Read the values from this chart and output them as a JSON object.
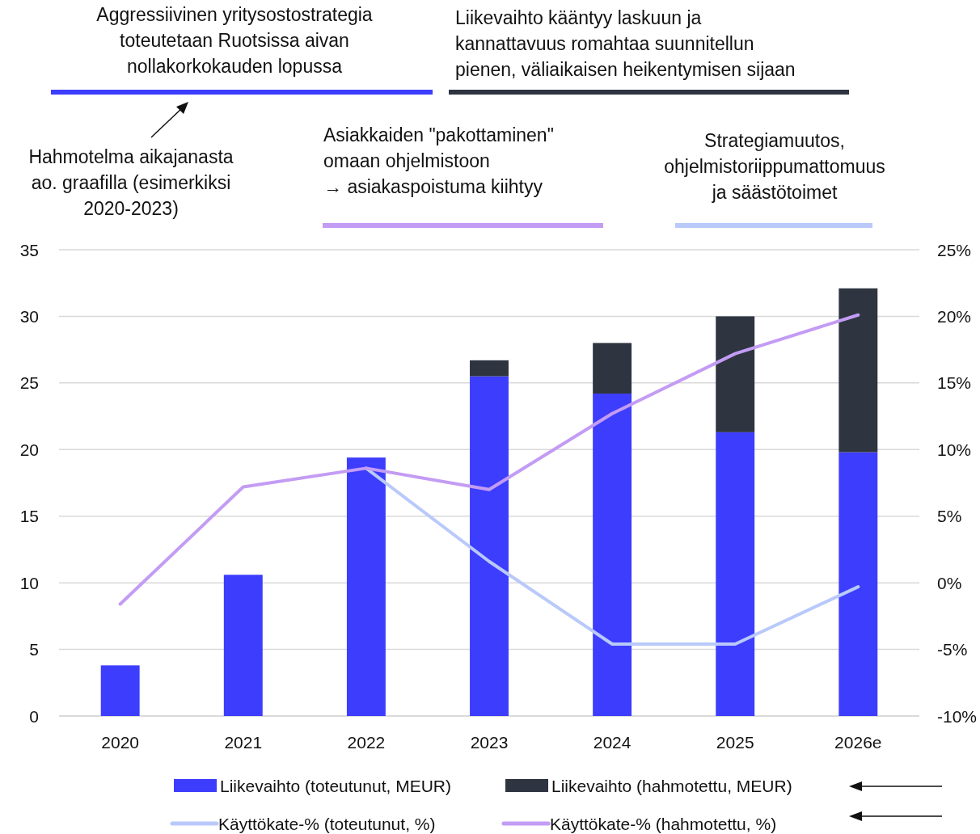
{
  "chart_data": {
    "type": "bar",
    "categories": [
      "2020",
      "2021",
      "2022",
      "2023",
      "2024",
      "2025",
      "2026e"
    ],
    "stacked": true,
    "series": [
      {
        "name": "Liikevaihto (toteutunut, MEUR)",
        "color": "#3d3dfe",
        "values": [
          3.8,
          10.6,
          19.4,
          25.5,
          24.2,
          21.3,
          19.8
        ]
      },
      {
        "name": "Liikevaihto (hahmotettu, MEUR)",
        "color": "#2e3440",
        "values": [
          null,
          null,
          null,
          1.2,
          3.8,
          8.7,
          12.3
        ]
      },
      {
        "name": "Käyttökate-% (toteutunut, %)",
        "type": "line",
        "axis": "y2",
        "color": "#b9c9fa",
        "values": [
          null,
          null,
          8.6,
          1.6,
          -4.6,
          -4.6,
          -0.3
        ]
      },
      {
        "name": "Käyttökate-% (hahmotettu, %)",
        "type": "line",
        "axis": "y2",
        "color": "#c39cf4",
        "values": [
          -1.6,
          7.2,
          8.6,
          7.0,
          12.7,
          17.2,
          20.1
        ]
      }
    ],
    "ylim": [
      0,
      35
    ],
    "yticks": [
      0,
      5,
      10,
      15,
      20,
      25,
      30,
      35
    ],
    "y2lim": [
      -10,
      25
    ],
    "y2ticks": [
      {
        "value": -10,
        "label": "-10%"
      },
      {
        "value": -5,
        "label": "-5%"
      },
      {
        "value": 0,
        "label": "0%"
      },
      {
        "value": 5,
        "label": "5%"
      },
      {
        "value": 10,
        "label": "10%"
      },
      {
        "value": 15,
        "label": "15%"
      },
      {
        "value": 20,
        "label": "20%"
      },
      {
        "value": 25,
        "label": "25%"
      }
    ],
    "grid": "y",
    "legend": "bottom",
    "marker": "none",
    "line_style": "solid",
    "annotations": [
      "Aggressiivinen yritysostostrategia\ntoteutetaan Ruotsissa aivan\nnollakorkokauden lopussa",
      "Liikevaihto kääntyy laskuun ja\nkannattavuus romahtaa suunnitellun\npienen, väliaikaisen heikentymisen sijaan",
      "Asiakkaiden \"pakottaminen\"\nomaan ohjelmistoon\n→ asiakaspoistuma kiihtyy",
      "Strategiamuutos,\nohjelmistoriippumattomuus\nja säästötoimet",
      "Hahmotelma aikajanasta\nao. graafilla (esimerkiksi\n2020-2023)"
    ]
  }
}
